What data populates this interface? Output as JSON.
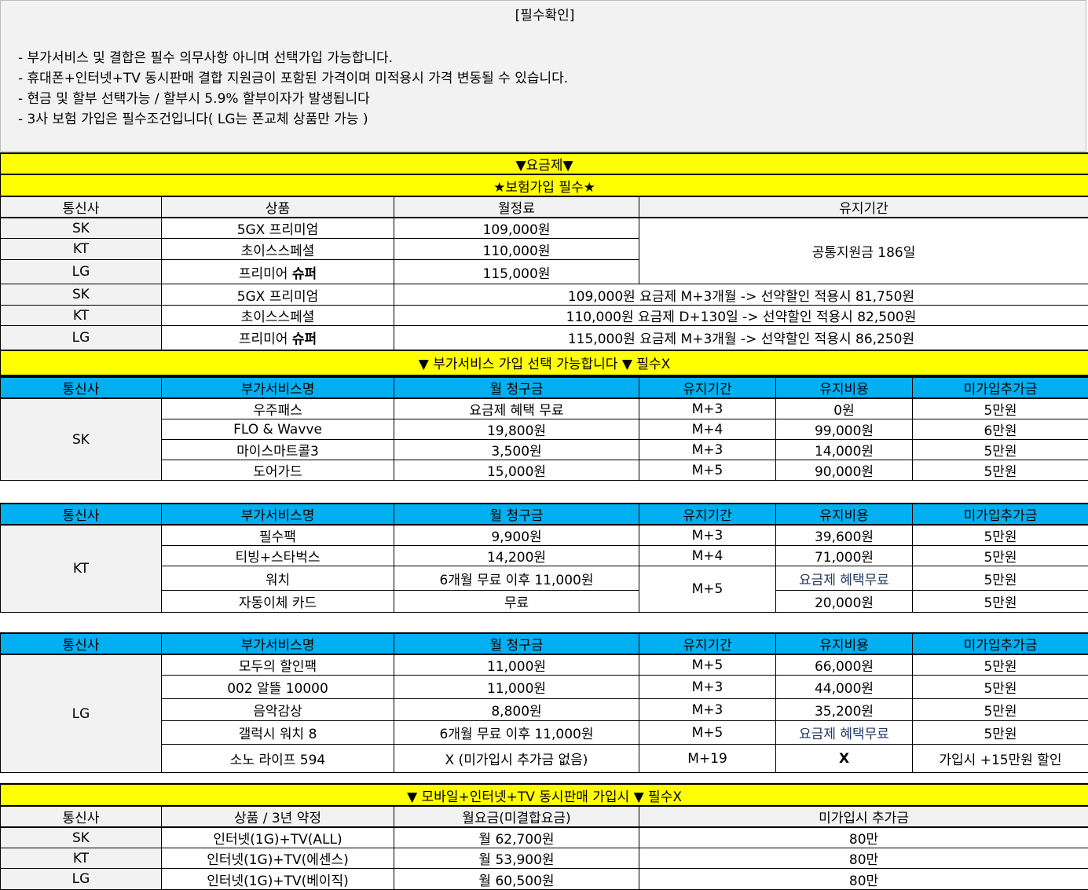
{
  "notice": {
    "title": "[필수확인]",
    "lines": [
      "- 부가서비스 및 결합은 필수 의무사항 아니며 선택가입 가능합니다.",
      "- 휴대폰+인터넷+TV 동시판매 결합 지원금이 포함된 가격이며 미적용시 가격 변동될 수 있습니다.",
      "- 현금 및 할부 선택가능 / 할부시 5.9% 할부이자가 발생됩니다",
      "- 3사 보험 가입은 필수조건입니다( LG는 폰교체 상품만 가능 )"
    ]
  },
  "plans": {
    "title": "▼요금제▼",
    "subtitle": "★보험가입 필수★",
    "headers": [
      "통신사",
      "상품",
      "월정료",
      "유지기간"
    ],
    "rows": [
      {
        "carrier": "SK",
        "product": "5GX 프리미엄",
        "fee": "109,000원"
      },
      {
        "carrier": "KT",
        "product": "초이스스페셜",
        "fee": "110,000원"
      },
      {
        "carrier": "LG",
        "product_a": "프리미어 ",
        "product_b": "슈퍼",
        "fee": "115,000원"
      }
    ],
    "period": "공통지원금 186일",
    "rows2": [
      {
        "carrier": "SK",
        "product": "5GX 프리미엄",
        "desc": "109,000원 요금제 M+3개월 -> 선약할인 적용시 81,750원"
      },
      {
        "carrier": "KT",
        "product": "초이스스페셜",
        "desc": "110,000원 요금제 D+130일 -> 선약할인 적용시 82,500원"
      },
      {
        "carrier": "LG",
        "product_a": "프리미어 ",
        "product_b": "슈퍼",
        "desc": "115,000원 요금제 M+3개월 -> 선약할인 적용시 86,250원"
      }
    ]
  },
  "addons": {
    "title": "▼ 부가서비스 가입 선택 가능합니다 ▼ 필수X",
    "headers": [
      "통신사",
      "부가서비스명",
      "월 청구금",
      "유지기간",
      "유지비용",
      "미가입추가금"
    ],
    "sk": {
      "carrier": "SK",
      "rows": [
        [
          "우주패스",
          "요금제 혜택 무료",
          "M+3",
          "0원",
          "5만원"
        ],
        [
          "FLO & Wavve",
          "19,800원",
          "M+4",
          "99,000원",
          "6만원"
        ],
        [
          "마이스마트콜3",
          "3,500원",
          "M+3",
          "14,000원",
          "5만원"
        ],
        [
          "도어가드",
          "15,000원",
          "M+5",
          "90,000원",
          "5만원"
        ]
      ]
    },
    "kt": {
      "carrier": "KT",
      "rows": [
        [
          "필수팩",
          "9,900원",
          "M+3",
          "39,600원",
          "5만원"
        ],
        [
          "티빙+스타벅스",
          "14,200원",
          "M+4",
          "71,000원",
          "5만원"
        ],
        [
          "워치",
          "6개월 무료 이후 11,000원",
          "M+5",
          "요금제 혜택무료",
          "5만원"
        ],
        [
          "자동이체 카드",
          "무료",
          "",
          "20,000원",
          "5만원"
        ]
      ]
    },
    "lg": {
      "carrier": "LG",
      "rows": [
        [
          "모두의 할인팩",
          "11,000원",
          "M+5",
          "66,000원",
          "5만원"
        ],
        [
          "002 알뜰 10000",
          "11,000원",
          "M+3",
          "44,000원",
          "5만원"
        ],
        [
          "음악감상",
          "8,800원",
          "M+3",
          "35,200원",
          "5만원"
        ],
        [
          "갤럭시 워치 8",
          "6개월 무료 이후 11,000원",
          "M+5",
          "요금제 혜택무료",
          "5만원"
        ],
        [
          "소노 라이프 594",
          "X (미가입시 추가금 없음)",
          "M+19",
          "X",
          "가입시 +15만원 할인"
        ]
      ]
    }
  },
  "bundle": {
    "title": "▼ 모바일+인터넷+TV 동시판매 가입시 ▼ 필수X",
    "headers": [
      "통신사",
      "상품 / 3년 약정",
      "월요금(미결합요금)",
      "미가입시 추가금"
    ],
    "rows": [
      [
        "SK",
        "인터넷(1G)+TV(ALL)",
        "월 62,700원",
        "80만"
      ],
      [
        "KT",
        "인터넷(1G)+TV(에센스)",
        "월 53,900원",
        "80만"
      ],
      [
        "LG",
        "인터넷(1G)+TV(베이직)",
        "월 60,500원",
        "80만"
      ]
    ]
  },
  "colors": {
    "yellow": "#ffff00",
    "blue": "#00b0f0",
    "gray": "#f2f2f2"
  }
}
